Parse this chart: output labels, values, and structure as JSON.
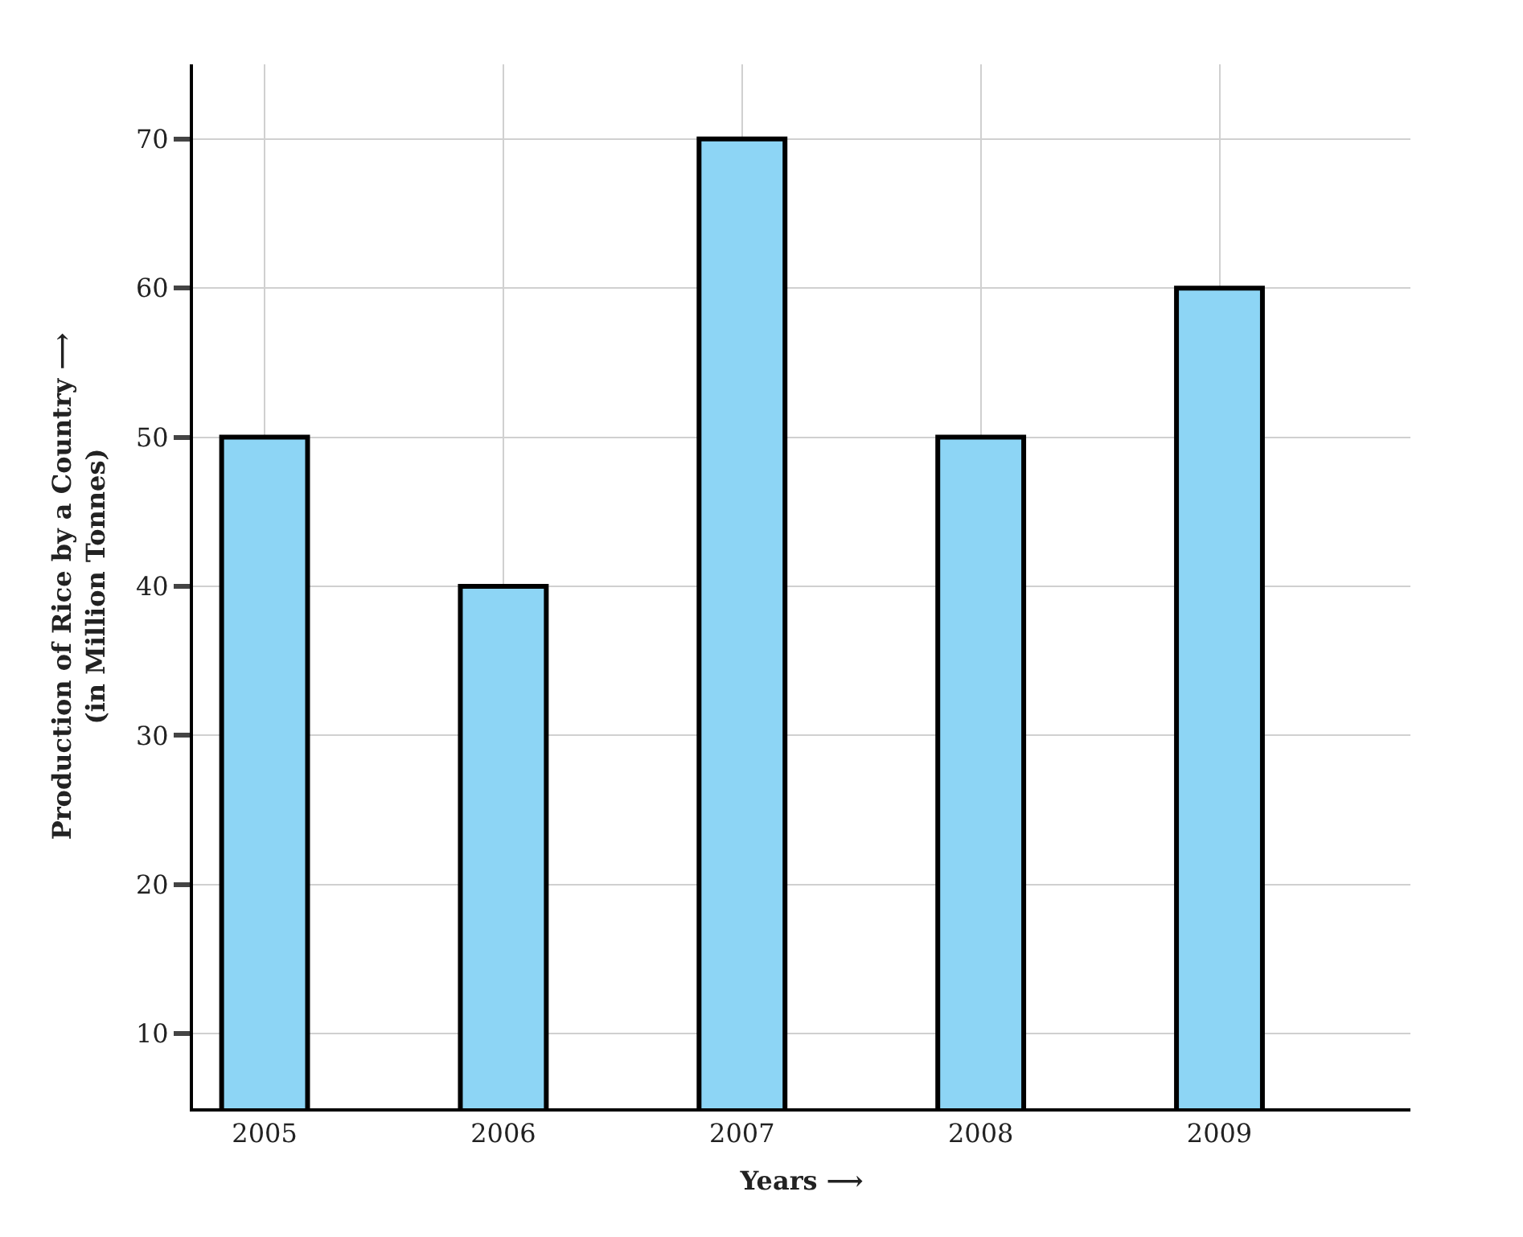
{
  "chart_data": {
    "type": "bar",
    "xlabel": "Years ⟶",
    "ylabel": "Production of Rice by a Country ⟶\n(in Million Tonnes)",
    "categories": [
      "2005",
      "2006",
      "2007",
      "2008",
      "2009"
    ],
    "values": [
      50,
      40,
      70,
      50,
      60
    ],
    "color": "#8dd5f5",
    "ylim": [
      5,
      75
    ],
    "yticks": [
      10,
      20,
      30,
      40,
      50,
      60,
      70
    ],
    "grid": true
  }
}
